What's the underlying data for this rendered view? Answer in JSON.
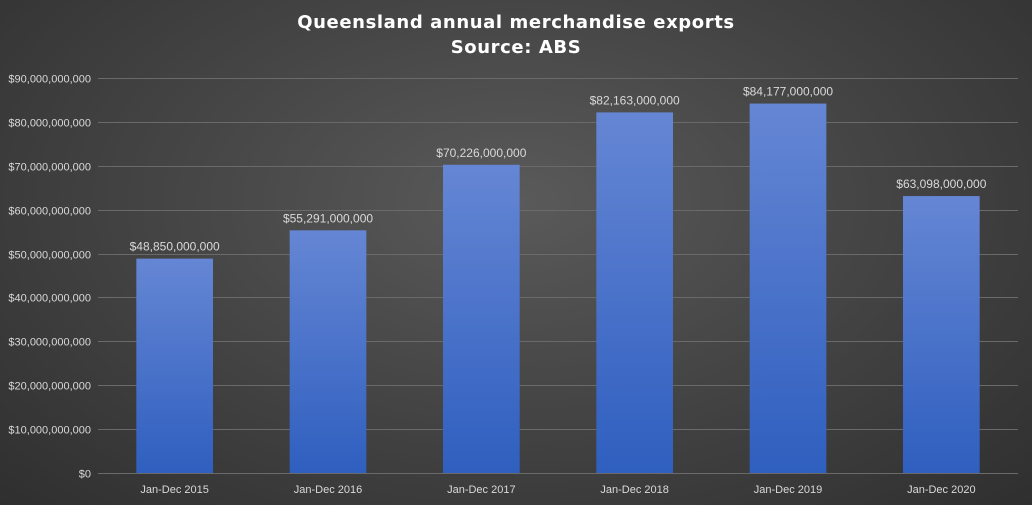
{
  "chart_data": {
    "type": "bar",
    "title": "Queensland annual merchandise exports",
    "subtitle": "Source: ABS",
    "xlabel": "",
    "ylabel": "",
    "categories": [
      "Jan-Dec 2015",
      "Jan-Dec 2016",
      "Jan-Dec 2017",
      "Jan-Dec 2018",
      "Jan-Dec 2019",
      "Jan-Dec 2020"
    ],
    "values": [
      48850000000,
      55291000000,
      70226000000,
      82163000000,
      84177000000,
      63098000000
    ],
    "data_labels": [
      "$48,850,000,000",
      "$55,291,000,000",
      "$70,226,000,000",
      "$82,163,000,000",
      "$84,177,000,000",
      "$63,098,000,000"
    ],
    "ylim": [
      0,
      90000000000
    ],
    "yticks": [
      0,
      10000000000,
      20000000000,
      30000000000,
      40000000000,
      50000000000,
      60000000000,
      70000000000,
      80000000000,
      90000000000
    ],
    "ytick_labels": [
      "$0",
      "$10,000,000,000",
      "$20,000,000,000",
      "$30,000,000,000",
      "$40,000,000,000",
      "$50,000,000,000",
      "$60,000,000,000",
      "$70,000,000,000",
      "$80,000,000,000",
      "$90,000,000,000"
    ],
    "grid": true,
    "legend": "none",
    "colors": {
      "bar_top": "#6586d4",
      "bar_bottom": "#2f5fbf",
      "gridline": "#6a6a6a",
      "axis_text": "#d9d9d9",
      "title_text": "#ffffff"
    }
  }
}
